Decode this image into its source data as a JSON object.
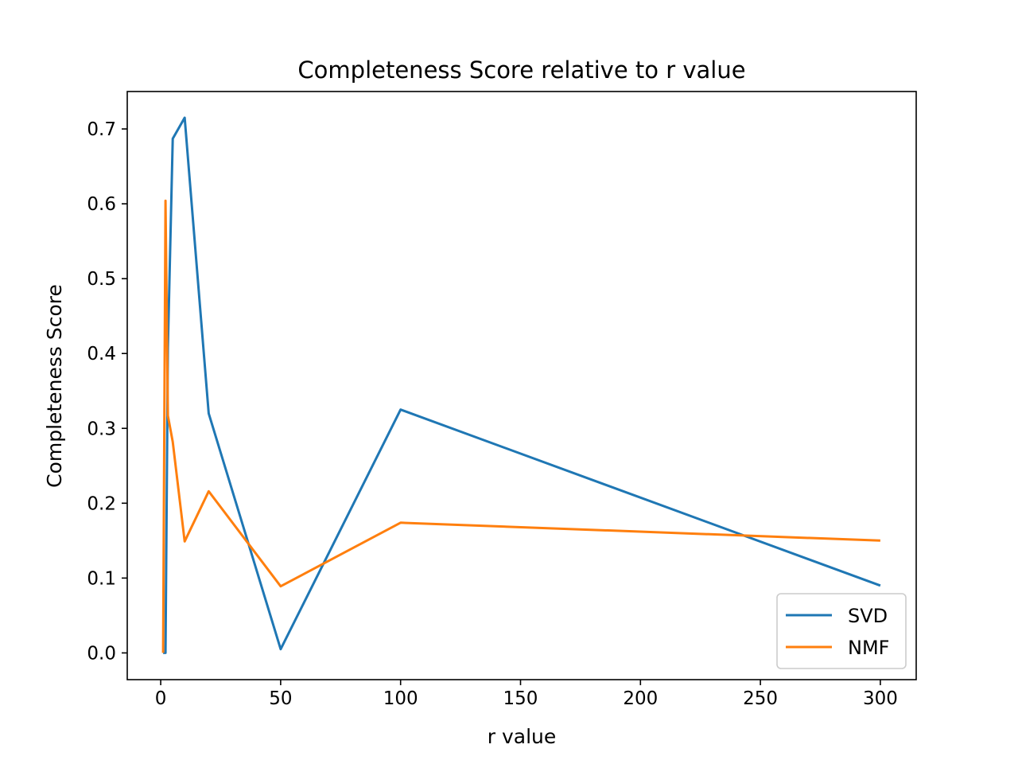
{
  "chart_data": {
    "type": "line",
    "title": "Completeness Score relative to r value",
    "xlabel": "r value",
    "ylabel": "Completeness Score",
    "xlim": [
      -13.95,
      314.95
    ],
    "ylim": [
      -0.0357,
      0.75
    ],
    "xticks": [
      0,
      50,
      100,
      150,
      200,
      250,
      300
    ],
    "yticks": [
      0.0,
      0.1,
      0.2,
      0.3,
      0.4,
      0.5,
      0.6,
      0.7
    ],
    "ytick_labels": [
      "0.0",
      "0.1",
      "0.2",
      "0.3",
      "0.4",
      "0.5",
      "0.6",
      "0.7"
    ],
    "x": [
      1,
      2,
      3,
      5,
      10,
      20,
      50,
      100,
      300
    ],
    "series": [
      {
        "name": "SVD",
        "color": "#1f77b4",
        "values": [
          0.0,
          0.0,
          0.408,
          0.687,
          0.715,
          0.32,
          0.005,
          0.325,
          0.09
        ]
      },
      {
        "name": "NMF",
        "color": "#ff7f0e",
        "values": [
          0.0,
          0.604,
          0.317,
          0.282,
          0.149,
          0.216,
          0.089,
          0.174,
          0.15
        ]
      }
    ],
    "grid": false,
    "legend_position": "lower-right"
  }
}
